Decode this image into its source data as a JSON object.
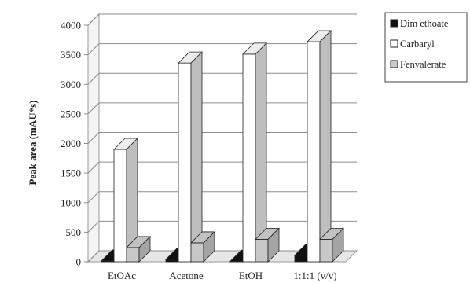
{
  "chart_data": {
    "type": "bar",
    "style": "3d-clustered-column",
    "title": "",
    "xlabel": "",
    "ylabel": "Peak area (mAU*s)",
    "ylim": [
      0,
      4000
    ],
    "yticks": [
      0,
      500,
      1000,
      1500,
      2000,
      2500,
      3000,
      3500,
      4000
    ],
    "grid": true,
    "legend_position": "right-top",
    "categories": [
      "EtOAc",
      "Acetone",
      "EtOH",
      "1:1:1 (v/v)"
    ],
    "series": [
      {
        "name": "Dim ethoate",
        "color": "#111111",
        "values": [
          15,
          40,
          10,
          110
        ]
      },
      {
        "name": "Carbaryl",
        "color": "#ffffff",
        "values": [
          1900,
          3360,
          3510,
          3720
        ]
      },
      {
        "name": "Fenvalerate",
        "color": "#c8c8c8",
        "values": [
          240,
          320,
          380,
          380
        ]
      }
    ]
  }
}
